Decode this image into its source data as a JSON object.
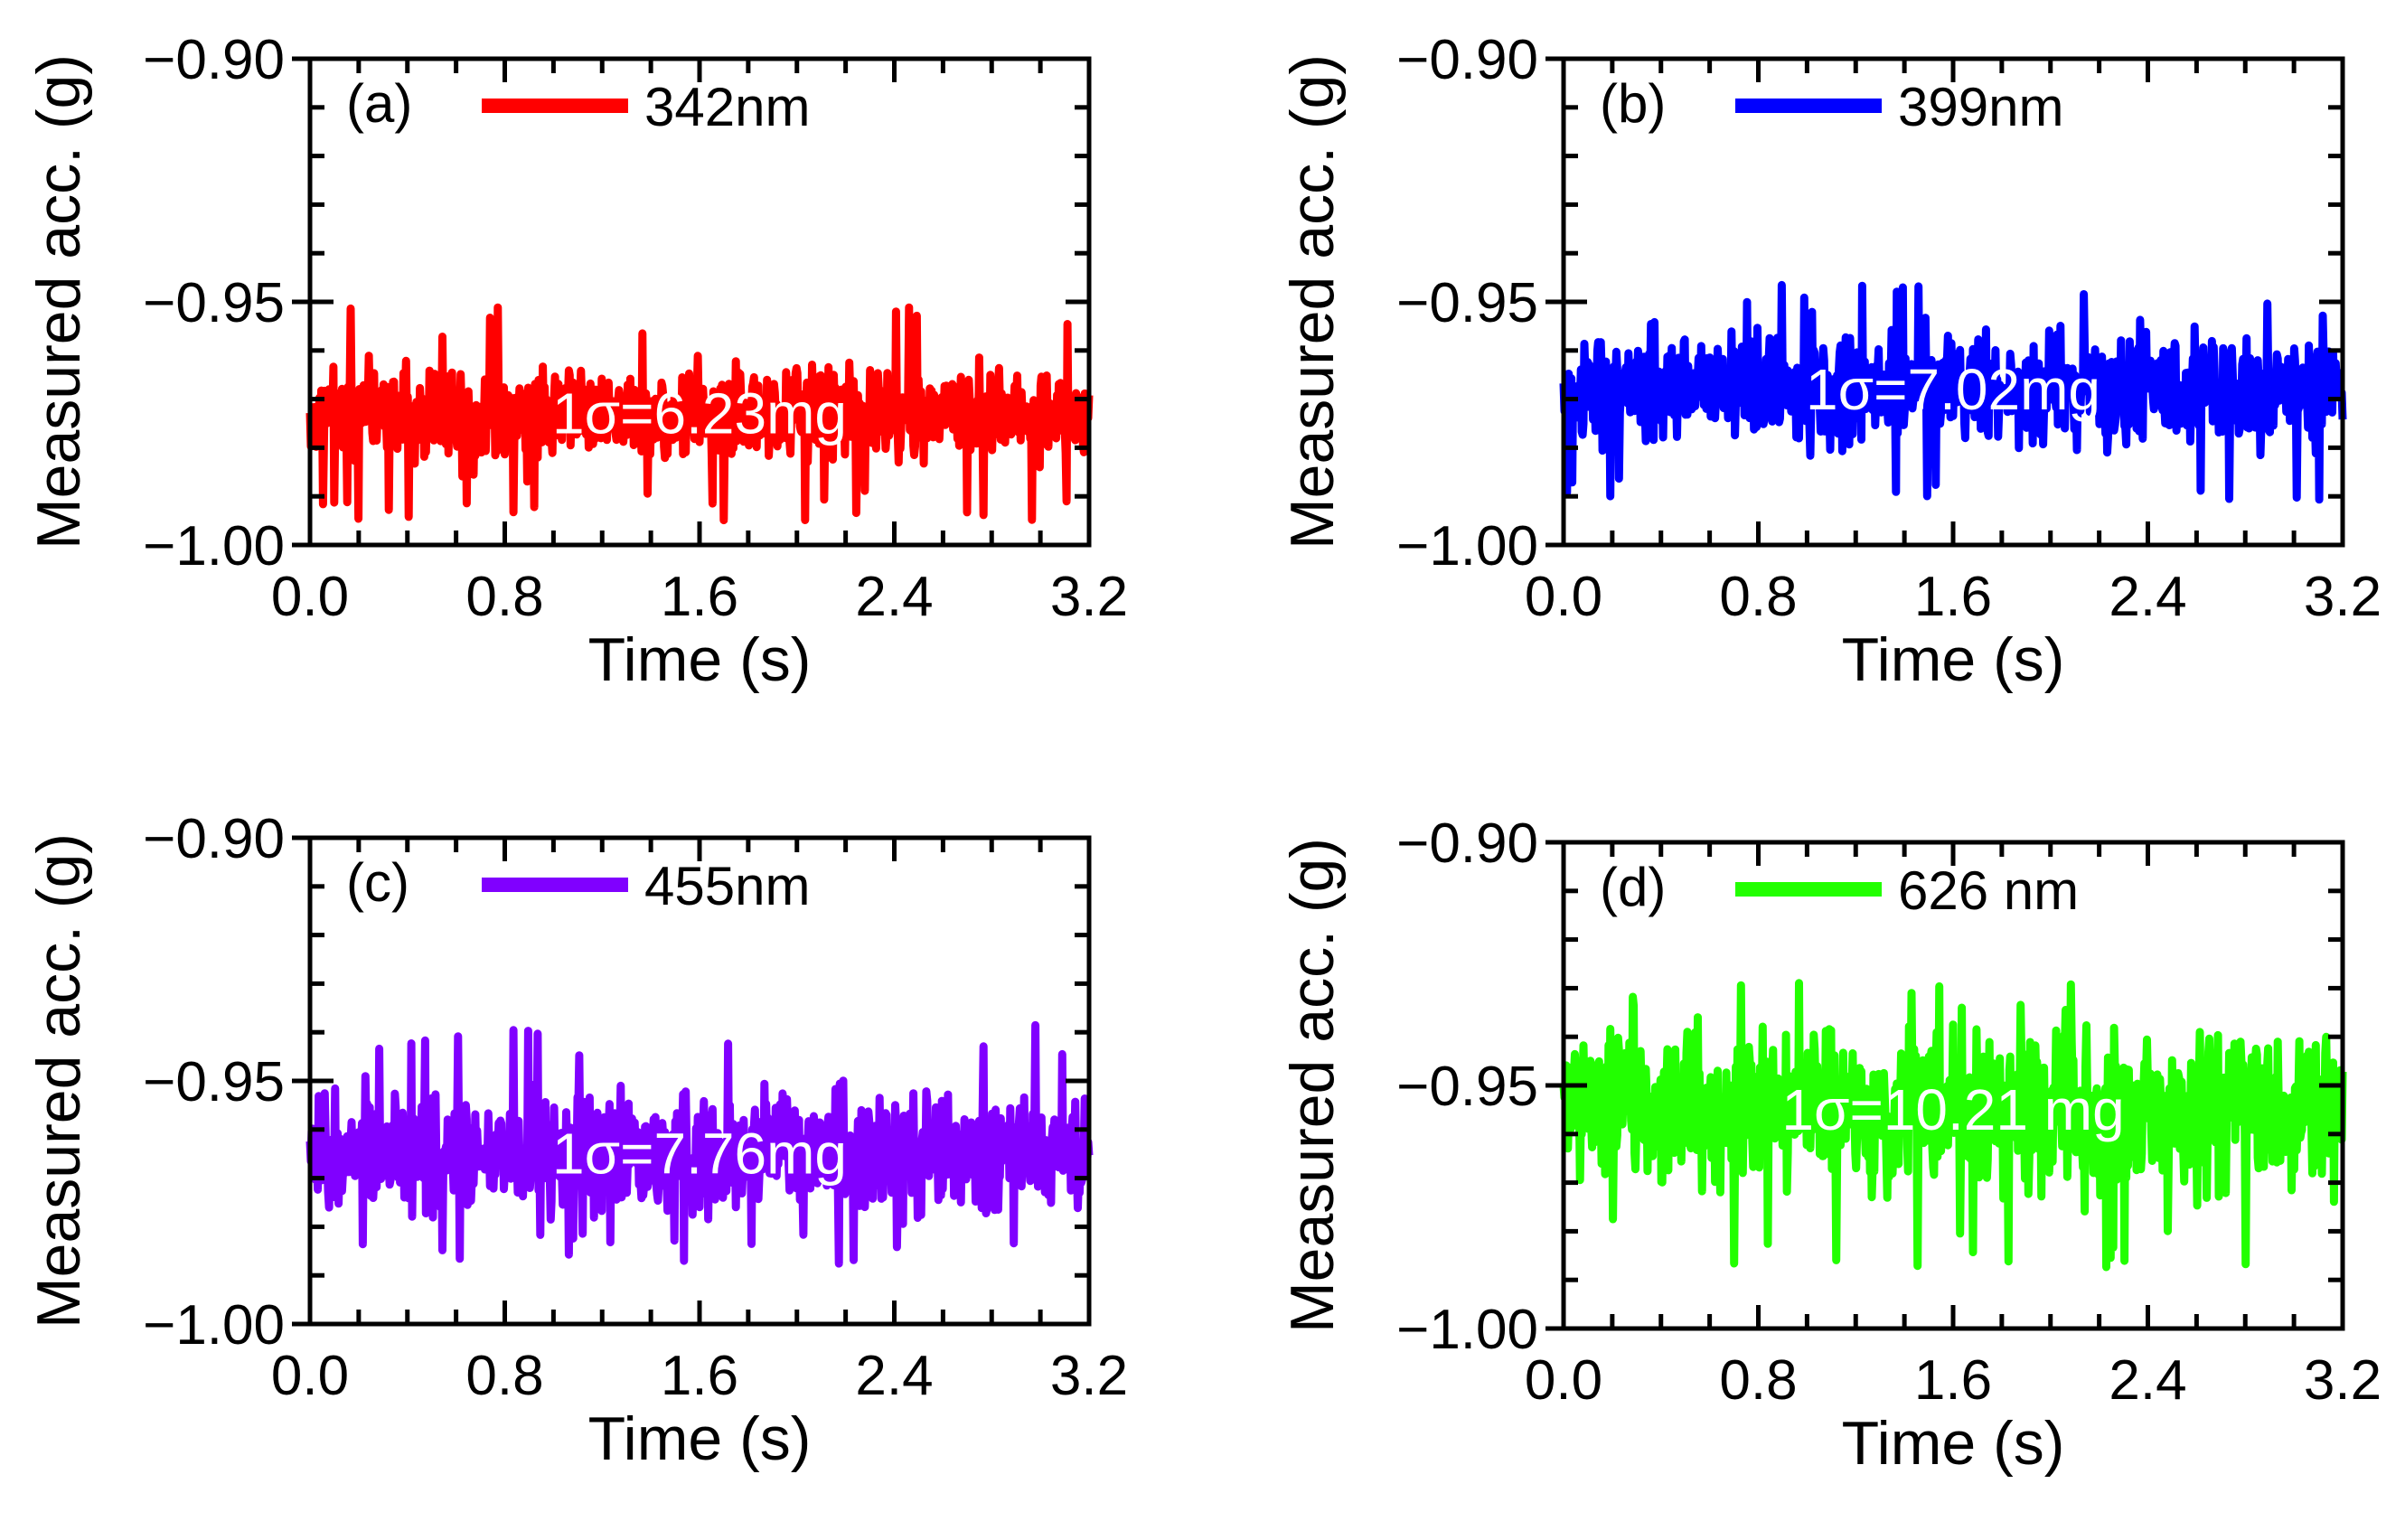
{
  "chart_data": [
    {
      "type": "line",
      "panel_label": "(a)",
      "legend": "342nm",
      "color": "#ff0000",
      "annotation": "1σ=6.23mg",
      "xlabel": "Time (s)",
      "ylabel": "Measured acc. (g)",
      "xlim": [
        0.0,
        3.2
      ],
      "ylim": [
        -1.0,
        -0.9
      ],
      "xticks": [
        "0.0",
        "0.8",
        "1.6",
        "2.4",
        "3.2"
      ],
      "yticks": [
        "−0.90",
        "−0.95",
        "−1.00"
      ],
      "series": [
        {
          "name": "342nm",
          "mean": -0.973,
          "std": 0.00623,
          "t_start": 0.0,
          "t_end": 3.2,
          "y_min": -0.995,
          "y_max": -0.951
        }
      ]
    },
    {
      "type": "line",
      "panel_label": "(b)",
      "legend": "399nm",
      "color": "#0000ff",
      "annotation": "1σ=7.02mg",
      "xlabel": "Time (s)",
      "ylabel": "Measured acc. (g)",
      "xlim": [
        0.0,
        3.2
      ],
      "ylim": [
        -1.0,
        -0.9
      ],
      "xticks": [
        "0.0",
        "0.8",
        "1.6",
        "2.4",
        "3.2"
      ],
      "yticks": [
        "−0.90",
        "−0.95",
        "−1.00"
      ],
      "series": [
        {
          "name": "399nm",
          "mean": -0.968,
          "std": 0.00702,
          "t_start": 0.0,
          "t_end": 3.2,
          "y_min": -0.993,
          "y_max": -0.946
        }
      ]
    },
    {
      "type": "line",
      "panel_label": "(c)",
      "legend": "455nm",
      "color": "#8000ff",
      "annotation": "1σ=7.76mg",
      "xlabel": "Time (s)",
      "ylabel": "Measured acc. (g)",
      "xlim": [
        0.0,
        3.2
      ],
      "ylim": [
        -1.0,
        -0.9
      ],
      "xticks": [
        "0.0",
        "0.8",
        "1.6",
        "2.4",
        "3.2"
      ],
      "yticks": [
        "−0.90",
        "−0.95",
        "−1.00"
      ],
      "series": [
        {
          "name": "455nm",
          "mean": -0.965,
          "std": 0.00776,
          "t_start": 0.0,
          "t_end": 3.2,
          "y_min": -0.988,
          "y_max": -0.937
        }
      ]
    },
    {
      "type": "line",
      "panel_label": "(d)",
      "legend": "626 nm",
      "color": "#22ff00",
      "annotation": "1σ=10.21 mg",
      "xlabel": "Time (s)",
      "ylabel": "Measured acc. (g)",
      "xlim": [
        0.0,
        3.2
      ],
      "ylim": [
        -1.0,
        -0.9
      ],
      "xticks": [
        "0.0",
        "0.8",
        "1.6",
        "2.4",
        "3.2"
      ],
      "yticks": [
        "−0.90",
        "−0.95",
        "−1.00"
      ],
      "series": [
        {
          "name": "626 nm",
          "mean": -0.955,
          "std": 0.01021,
          "t_start": 0.0,
          "t_end": 3.2,
          "y_min": -0.988,
          "y_max": -0.925
        }
      ]
    }
  ]
}
